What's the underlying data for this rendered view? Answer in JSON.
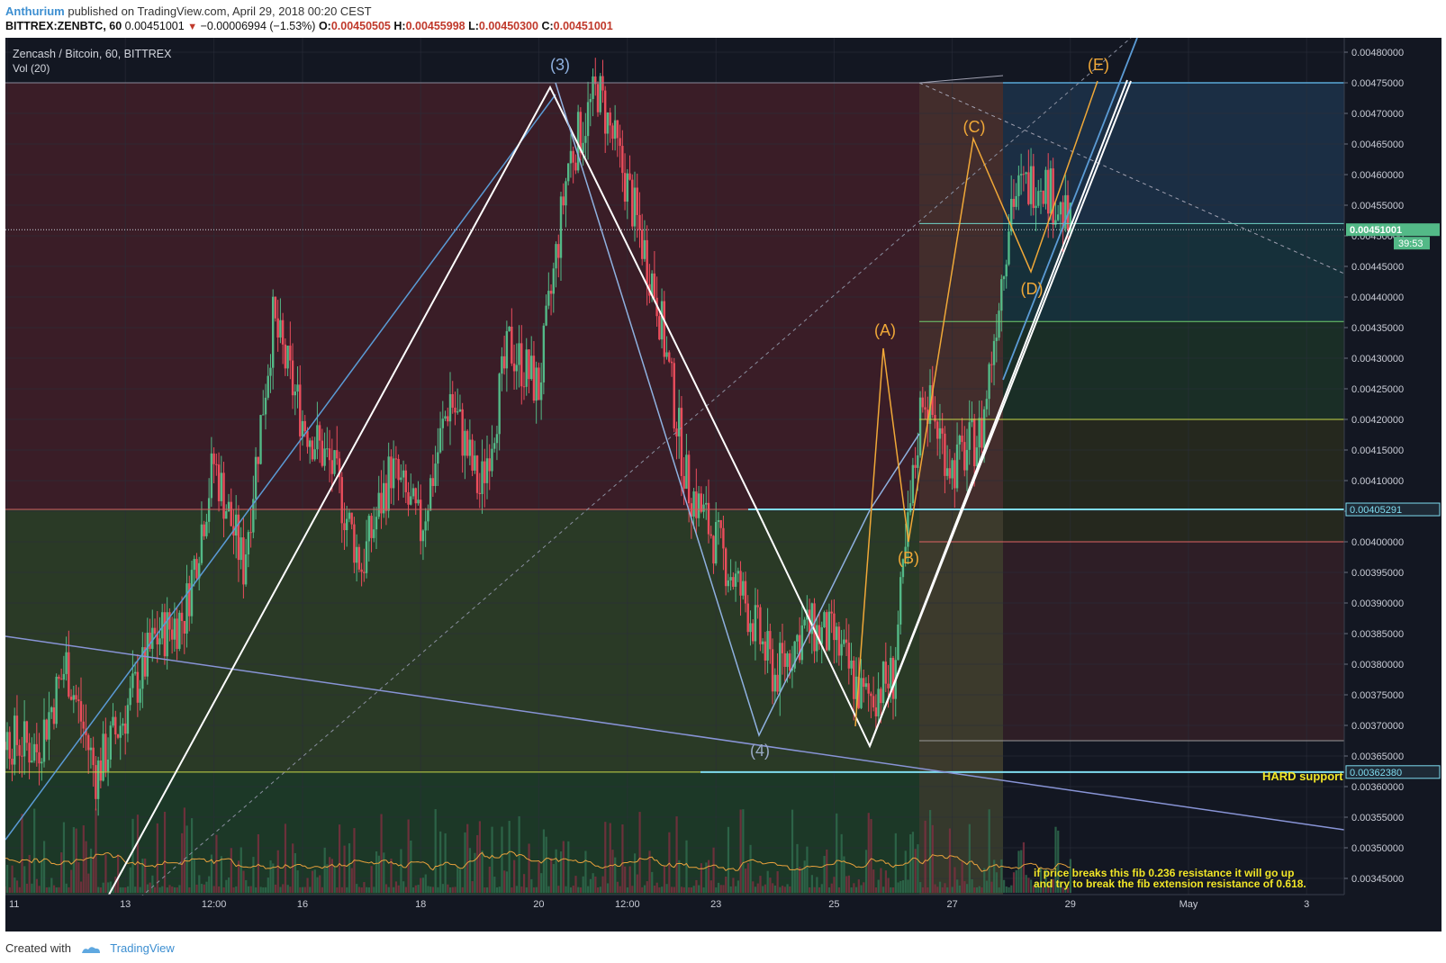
{
  "header": {
    "author": "Anthurium",
    "published": "published on TradingView.com, April 29, 2018 00:20 CEST",
    "symbol": "BITTREX:ZENBTC, 60",
    "last": "0.00451001",
    "change_arrow": "▼",
    "change": "−0.00006994 (−1.53%)",
    "o_label": "O:",
    "o_value": "0.00450505",
    "h_label": "H:",
    "h_value": "0.00455998",
    "l_label": "L:",
    "l_value": "0.00450300",
    "c_label": "C:",
    "c_value": "0.00451001"
  },
  "chart_labels": {
    "pair": "Zencash / Bitcoin, 60, BITTREX",
    "volume": "Vol (20)",
    "price_badge": "0.00451001",
    "countdown": "39:53",
    "level_badge_1": "0.00405291",
    "level_badge_2": "0.00362380",
    "hard_support": "HARD support",
    "note_line1": "if price breaks this fib 0.236 resistance it will go up",
    "note_line2": "and try to break the fib extension resistance of 0.618."
  },
  "footer": {
    "created_with": "Created with",
    "brand": "TradingView"
  },
  "colors": {
    "background": "#131722",
    "up": "#53b987",
    "down": "#eb4d5c",
    "wave_blue": "#8fb1e0",
    "wave_orange": "#f0a838",
    "trend_white": "#ffffff",
    "level_cyan": "#7fdcf0",
    "note_yellow": "#f2e627"
  },
  "chart_data": {
    "type": "candlestick",
    "symbol": "ZENBTC",
    "interval": "60",
    "exchange": "BITTREX",
    "y_axis_ticks": [
      "0.00480000",
      "0.00475000",
      "0.00470000",
      "0.00465000",
      "0.00460000",
      "0.00455000",
      "0.00450000",
      "0.00445000",
      "0.00440000",
      "0.00435000",
      "0.00430000",
      "0.00425000",
      "0.00420000",
      "0.00415000",
      "0.00410000",
      "0.00405000",
      "0.00400000",
      "0.00395000",
      "0.00390000",
      "0.00385000",
      "0.00380000",
      "0.00375000",
      "0.00370000",
      "0.00365000",
      "0.00360000",
      "0.00355000",
      "0.00350000",
      "0.00345000"
    ],
    "x_axis_ticks": [
      "11",
      "13",
      "12:00",
      "16",
      "18",
      "20",
      "12:00",
      "23",
      "25",
      "27",
      "29",
      "May",
      "3"
    ],
    "ylim": [
      0.00343,
      0.00482
    ],
    "last_price": 0.00451001,
    "horizontal_levels": [
      0.00475,
      0.00452,
      0.00436,
      0.0042,
      0.00405291,
      0.004,
      0.003675,
      0.0036238
    ],
    "wave_labels": [
      {
        "label": "(3)",
        "price": 0.004755,
        "date": "Apr 20"
      },
      {
        "label": "(4)",
        "price": 0.003688,
        "date": "Apr 24"
      },
      {
        "label": "(A)",
        "price": 0.00432,
        "date": "Apr 26"
      },
      {
        "label": "(B)",
        "price": 0.004,
        "date": "Apr 26"
      },
      {
        "label": "(C)",
        "price": 0.004655,
        "date": "Apr 27"
      },
      {
        "label": "(D)",
        "price": 0.00444,
        "date": "Apr 28"
      },
      {
        "label": "(E)",
        "price": 0.004755,
        "date": "Apr 29"
      }
    ],
    "price_path": [
      {
        "date": "Apr 10 12:00",
        "price": 0.00372
      },
      {
        "date": "Apr 11",
        "price": 0.00368
      },
      {
        "date": "Apr 11 12:00",
        "price": 0.00366
      },
      {
        "date": "Apr 12",
        "price": 0.0038
      },
      {
        "date": "Apr 12 12:00",
        "price": 0.00362
      },
      {
        "date": "Apr 13",
        "price": 0.00372
      },
      {
        "date": "Apr 13 12:00",
        "price": 0.00384
      },
      {
        "date": "Apr 14",
        "price": 0.00388
      },
      {
        "date": "Apr 14 12:00",
        "price": 0.00413
      },
      {
        "date": "Apr 15",
        "price": 0.00396
      },
      {
        "date": "Apr 15 12:00",
        "price": 0.00436
      },
      {
        "date": "Apr 16",
        "price": 0.0042
      },
      {
        "date": "Apr 16 12:00",
        "price": 0.00412
      },
      {
        "date": "Apr 17",
        "price": 0.00396
      },
      {
        "date": "Apr 17 12:00",
        "price": 0.00412
      },
      {
        "date": "Apr 18",
        "price": 0.00402
      },
      {
        "date": "Apr 18 12:00",
        "price": 0.00424
      },
      {
        "date": "Apr 19",
        "price": 0.00408
      },
      {
        "date": "Apr 19 12:00",
        "price": 0.00432
      },
      {
        "date": "Apr 20",
        "price": 0.00425
      },
      {
        "date": "Apr 20 12:00",
        "price": 0.00462
      },
      {
        "date": "Apr 21",
        "price": 0.00474
      },
      {
        "date": "Apr 21 12:00",
        "price": 0.00458
      },
      {
        "date": "Apr 22",
        "price": 0.0044
      },
      {
        "date": "Apr 22 12:00",
        "price": 0.0041
      },
      {
        "date": "Apr 23",
        "price": 0.004
      },
      {
        "date": "Apr 23 12:00",
        "price": 0.0039
      },
      {
        "date": "Apr 24",
        "price": 0.00378
      },
      {
        "date": "Apr 24 12:00",
        "price": 0.00386
      },
      {
        "date": "Apr 25",
        "price": 0.00384
      },
      {
        "date": "Apr 25 12:00",
        "price": 0.00374
      },
      {
        "date": "Apr 26",
        "price": 0.00378
      },
      {
        "date": "Apr 26 12:00",
        "price": 0.00425
      },
      {
        "date": "Apr 27",
        "price": 0.00412
      },
      {
        "date": "Apr 27 12:00",
        "price": 0.00418
      },
      {
        "date": "Apr 28",
        "price": 0.00456
      },
      {
        "date": "Apr 28 12:00",
        "price": 0.0046
      },
      {
        "date": "Apr 29",
        "price": 0.00451
      }
    ]
  }
}
